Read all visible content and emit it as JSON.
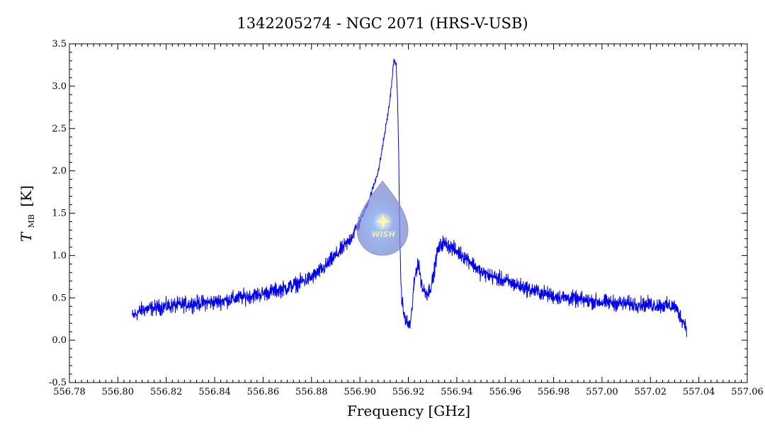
{
  "chart_data": {
    "type": "line",
    "title": "1342205274 - NGC 2071 (HRS-V-USB)",
    "xlabel": "Frequency [GHz]",
    "ylabel_main": "T",
    "ylabel_sub": "MB",
    "ylabel_unit": "[K]",
    "xlim": [
      556.78,
      557.06
    ],
    "ylim": [
      -0.5,
      3.5
    ],
    "x_ticks": [
      "556.78",
      "556.80",
      "556.82",
      "556.84",
      "556.86",
      "556.88",
      "556.90",
      "556.92",
      "556.94",
      "556.96",
      "556.98",
      "557.00",
      "557.02",
      "557.04",
      "557.06"
    ],
    "y_ticks": [
      "-0.5",
      "0.0",
      "0.5",
      "1.0",
      "1.5",
      "2.0",
      "2.5",
      "3.0",
      "3.5"
    ],
    "grid": false,
    "series": [
      {
        "color": "#0000ee",
        "x": [
          556.806,
          556.81,
          556.82,
          556.83,
          556.84,
          556.85,
          556.86,
          556.87,
          556.88,
          556.885,
          556.89,
          556.895,
          556.9,
          556.903,
          556.906,
          556.908,
          556.91,
          556.912,
          556.913,
          556.914,
          556.915,
          556.9155,
          556.916,
          556.9165,
          556.917,
          556.918,
          556.919,
          556.92,
          556.921,
          556.922,
          556.923,
          556.924,
          556.925,
          556.926,
          556.928,
          556.93,
          556.932,
          556.934,
          556.936,
          556.94,
          556.945,
          556.95,
          556.96,
          556.97,
          556.98,
          556.99,
          557.0,
          557.01,
          557.02,
          557.03,
          557.035
        ],
        "y": [
          0.28,
          0.36,
          0.4,
          0.43,
          0.45,
          0.5,
          0.55,
          0.62,
          0.74,
          0.85,
          1.0,
          1.15,
          1.4,
          1.6,
          1.85,
          2.05,
          2.4,
          2.75,
          3.0,
          3.3,
          3.25,
          2.9,
          2.2,
          1.2,
          0.6,
          0.32,
          0.22,
          0.18,
          0.2,
          0.55,
          0.8,
          0.92,
          0.75,
          0.6,
          0.55,
          0.7,
          1.05,
          1.15,
          1.13,
          1.05,
          0.95,
          0.8,
          0.7,
          0.6,
          0.52,
          0.48,
          0.45,
          0.43,
          0.42,
          0.4,
          0.15
        ]
      }
    ],
    "logo_text": "WISH"
  }
}
